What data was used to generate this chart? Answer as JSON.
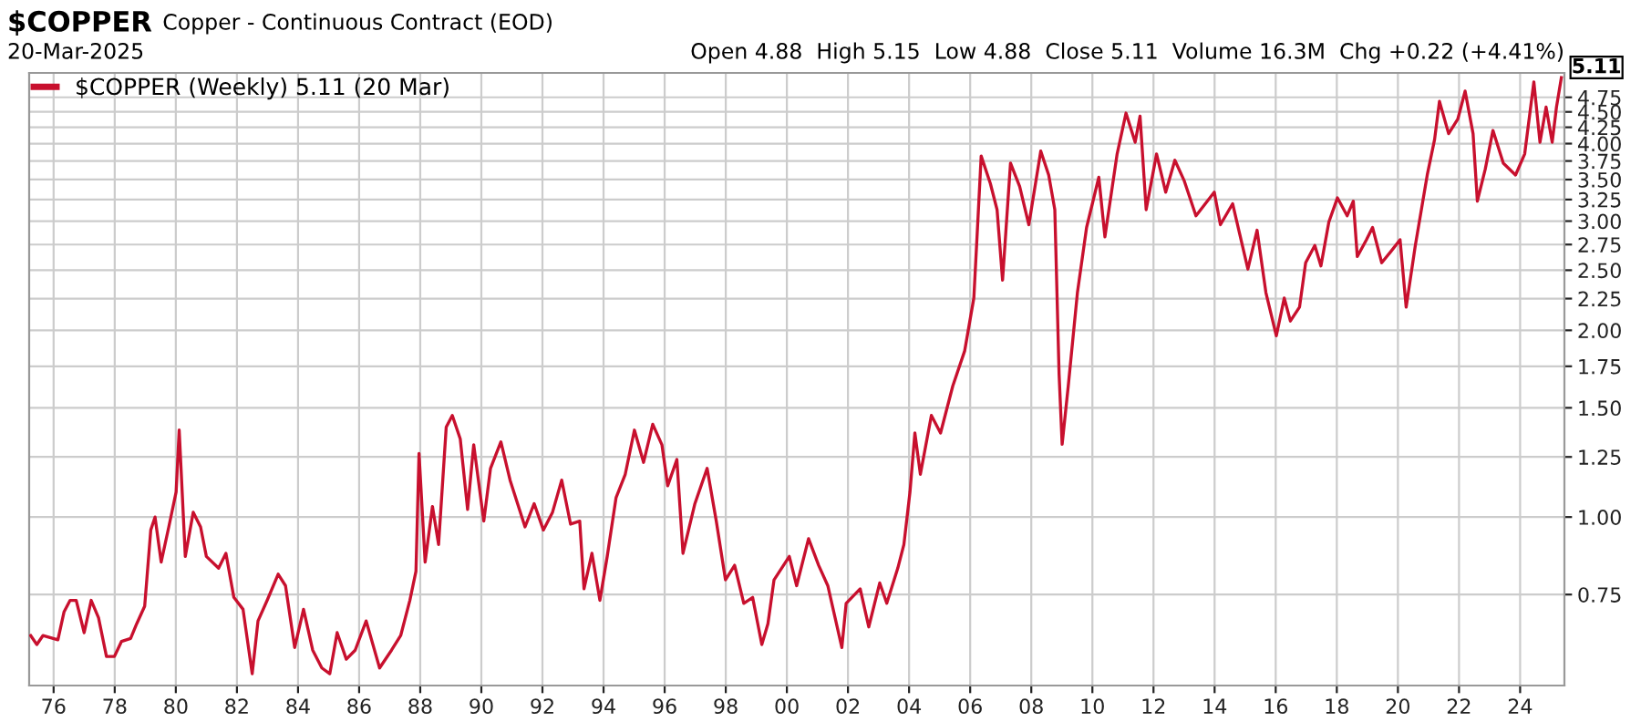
{
  "chart_data": {
    "type": "line",
    "title": "$COPPER",
    "subtitle": "Copper - Continuous Contract (EOD)",
    "annotations": [
      "20-Mar-2025",
      "Open 4.88  High 5.15  Low 4.88  Close 5.11  Volume 16.3M  Chg +0.22 (+4.41%)",
      {
        "text": "5.11",
        "x": 2025.35,
        "y": 5.11
      }
    ],
    "log": "y",
    "grid": true,
    "legend": "top left",
    "line_style": "solid",
    "marker": "none",
    "xlim": [
      1975.2,
      2025.45
    ],
    "ylim": [
      0.535,
      5.2
    ],
    "xticks": [
      {
        "value": 1976,
        "label": "76"
      },
      {
        "value": 1978,
        "label": "78"
      },
      {
        "value": 1980,
        "label": "80"
      },
      {
        "value": 1982,
        "label": "82"
      },
      {
        "value": 1984,
        "label": "84"
      },
      {
        "value": 1986,
        "label": "86"
      },
      {
        "value": 1988,
        "label": "88"
      },
      {
        "value": 1990,
        "label": "90"
      },
      {
        "value": 1992,
        "label": "92"
      },
      {
        "value": 1994,
        "label": "94"
      },
      {
        "value": 1996,
        "label": "96"
      },
      {
        "value": 1998,
        "label": "98"
      },
      {
        "value": 2000,
        "label": "00"
      },
      {
        "value": 2002,
        "label": "02"
      },
      {
        "value": 2004,
        "label": "04"
      },
      {
        "value": 2006,
        "label": "06"
      },
      {
        "value": 2008,
        "label": "08"
      },
      {
        "value": 2010,
        "label": "10"
      },
      {
        "value": 2012,
        "label": "12"
      },
      {
        "value": 2014,
        "label": "14"
      },
      {
        "value": 2016,
        "label": "16"
      },
      {
        "value": 2018,
        "label": "18"
      },
      {
        "value": 2020,
        "label": "20"
      },
      {
        "value": 2022,
        "label": "22"
      },
      {
        "value": 2024,
        "label": "24"
      }
    ],
    "yticks": [
      0.75,
      {
        "value": 1,
        "label": "1.00"
      },
      1.25,
      {
        "value": 1.5,
        "label": "1.50"
      },
      1.75,
      {
        "value": 2,
        "label": "2.00"
      },
      2.25,
      {
        "value": 2.5,
        "label": "2.50"
      },
      2.75,
      {
        "value": 3,
        "label": "3.00"
      },
      3.25,
      {
        "value": 3.5,
        "label": "3.50"
      },
      3.75,
      {
        "value": 4,
        "label": "4.00"
      },
      4.25,
      {
        "value": 4.5,
        "label": "4.50"
      },
      4.75
    ],
    "series": [
      {
        "name": "$COPPER (Weekly) 5.11 (20 Mar)",
        "color": "#c8102e",
        "x": [
          1975.25,
          1975.45,
          1975.65,
          1976.14,
          1976.34,
          1976.54,
          1976.74,
          1977.0,
          1977.23,
          1977.47,
          1977.73,
          1977.99,
          1978.22,
          1978.52,
          1978.72,
          1978.98,
          1979.18,
          1979.32,
          1979.52,
          1979.77,
          1980.01,
          1980.11,
          1980.31,
          1980.57,
          1980.81,
          1981.0,
          1981.4,
          1981.64,
          1981.9,
          1982.2,
          1982.5,
          1982.69,
          1982.99,
          1983.35,
          1983.59,
          1983.89,
          1984.18,
          1984.48,
          1984.78,
          1985.04,
          1985.28,
          1985.58,
          1985.87,
          1986.23,
          1986.67,
          1987.06,
          1987.36,
          1987.66,
          1987.86,
          1987.96,
          1988.16,
          1988.4,
          1988.6,
          1988.85,
          1989.05,
          1989.31,
          1989.55,
          1989.75,
          1990.08,
          1990.3,
          1990.64,
          1990.94,
          1991.43,
          1991.73,
          1992.03,
          1992.33,
          1992.63,
          1992.92,
          1993.22,
          1993.36,
          1993.62,
          1993.88,
          1994.12,
          1994.41,
          1994.71,
          1995.01,
          1995.31,
          1995.61,
          1995.91,
          1996.1,
          1996.4,
          1996.6,
          1996.99,
          1997.39,
          1997.69,
          1997.99,
          1998.29,
          1998.59,
          1998.88,
          1999.18,
          1999.38,
          1999.58,
          2000.08,
          2000.32,
          2000.71,
          2001.04,
          2001.34,
          2001.8,
          2001.94,
          2002.4,
          2002.68,
          2003.04,
          2003.27,
          2003.63,
          2003.83,
          2004.03,
          2004.19,
          2004.37,
          2004.73,
          2005.03,
          2005.43,
          2005.82,
          2006.12,
          2006.26,
          2006.36,
          2006.66,
          2006.88,
          2007.06,
          2007.32,
          2007.62,
          2007.92,
          2008.31,
          2008.57,
          2008.77,
          2008.91,
          2009.01,
          2009.21,
          2009.51,
          2009.81,
          2010.21,
          2010.41,
          2010.81,
          2011.1,
          2011.4,
          2011.56,
          2011.76,
          2012.1,
          2012.4,
          2012.7,
          2013.0,
          2013.39,
          2013.99,
          2014.19,
          2014.59,
          2015.09,
          2015.39,
          2015.68,
          2016.02,
          2016.28,
          2016.48,
          2016.78,
          2016.98,
          2017.28,
          2017.48,
          2017.74,
          2018.02,
          2018.34,
          2018.54,
          2018.67,
          2018.97,
          2019.17,
          2019.47,
          2019.77,
          2020.07,
          2020.27,
          2020.57,
          2020.96,
          2021.2,
          2021.36,
          2021.66,
          2021.96,
          2022.2,
          2022.46,
          2022.6,
          2022.86,
          2023.11,
          2023.45,
          2023.85,
          2024.15,
          2024.45,
          2024.65,
          2024.85,
          2025.05,
          2025.19,
          2025.35
        ],
        "values": [
          0.644,
          0.623,
          0.644,
          0.634,
          0.703,
          0.734,
          0.734,
          0.651,
          0.734,
          0.688,
          0.596,
          0.596,
          0.63,
          0.637,
          0.673,
          0.718,
          0.953,
          1.0,
          0.846,
          0.964,
          1.098,
          1.381,
          0.864,
          1.018,
          0.964,
          0.864,
          0.827,
          0.874,
          0.742,
          0.71,
          0.559,
          0.68,
          0.734,
          0.809,
          0.775,
          0.616,
          0.71,
          0.61,
          0.571,
          0.559,
          0.651,
          0.59,
          0.61,
          0.68,
          0.571,
          0.61,
          0.644,
          0.734,
          0.818,
          1.266,
          0.846,
          1.04,
          0.903,
          1.396,
          1.458,
          1.336,
          1.029,
          1.308,
          0.985,
          1.198,
          1.322,
          1.147,
          0.964,
          1.051,
          0.953,
          1.018,
          1.147,
          0.974,
          0.985,
          0.766,
          0.874,
          0.734,
          0.864,
          1.075,
          1.172,
          1.381,
          1.225,
          1.411,
          1.308,
          1.123,
          1.238,
          0.874,
          1.051,
          1.198,
          0.985,
          0.792,
          0.836,
          0.726,
          0.742,
          0.623,
          0.673,
          0.792,
          0.864,
          0.775,
          0.923,
          0.836,
          0.775,
          0.616,
          0.726,
          0.766,
          0.665,
          0.783,
          0.726,
          0.827,
          0.903,
          1.098,
          1.366,
          1.172,
          1.458,
          1.366,
          1.626,
          1.853,
          2.255,
          3.06,
          3.82,
          3.45,
          3.13,
          2.41,
          3.72,
          3.41,
          2.96,
          3.89,
          3.56,
          3.13,
          1.7,
          1.31,
          1.626,
          2.3,
          2.93,
          3.53,
          2.83,
          3.85,
          4.48,
          4.02,
          4.43,
          3.13,
          3.85,
          3.34,
          3.76,
          3.49,
          3.06,
          3.34,
          2.96,
          3.2,
          2.51,
          2.9,
          2.3,
          1.96,
          2.255,
          2.07,
          2.18,
          2.57,
          2.74,
          2.54,
          2.99,
          3.27,
          3.06,
          3.23,
          2.63,
          2.8,
          2.93,
          2.57,
          2.68,
          2.8,
          2.18,
          2.74,
          3.56,
          4.06,
          4.68,
          4.15,
          4.38,
          4.86,
          4.15,
          3.23,
          3.64,
          4.2,
          3.72,
          3.56,
          3.85,
          5.03,
          4.02,
          4.58,
          4.02,
          4.58,
          5.11
        ]
      }
    ]
  }
}
